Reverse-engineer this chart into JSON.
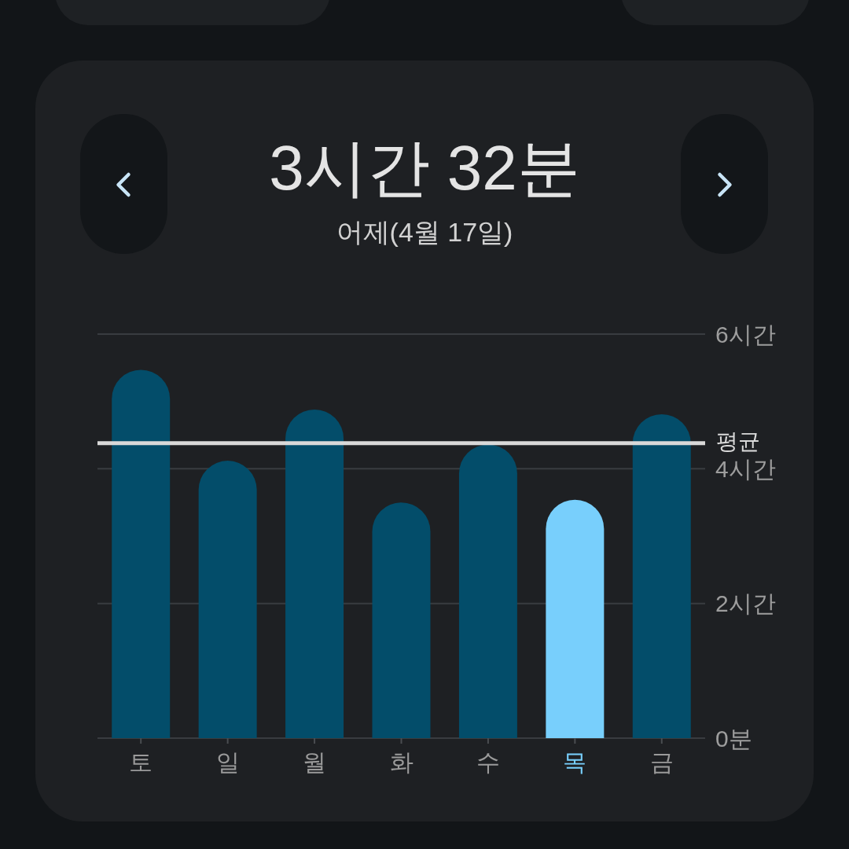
{
  "chart_data": {
    "type": "bar",
    "title": "3시간 32분",
    "subtitle": "어제(4월 17일)",
    "categories": [
      "토",
      "일",
      "월",
      "화",
      "수",
      "목",
      "금"
    ],
    "values": [
      5.47,
      4.12,
      4.88,
      3.5,
      4.36,
      3.54,
      4.81
    ],
    "colors": [
      "#034d6a",
      "#034d6a",
      "#034d6a",
      "#034d6a",
      "#034d6a",
      "#78cffc",
      "#034d6a"
    ],
    "ylim": [
      0,
      6
    ],
    "yticks": [
      {
        "value": 0,
        "label": "0분"
      },
      {
        "value": 2,
        "label": "2시간"
      },
      {
        "value": 4,
        "label": "4시간"
      },
      {
        "value": 6,
        "label": "6시간"
      }
    ],
    "grid": "y",
    "ref_lines": [
      {
        "axis": "y",
        "value": 4.38,
        "label": "평균",
        "color": "#d9d9d9"
      }
    ]
  }
}
